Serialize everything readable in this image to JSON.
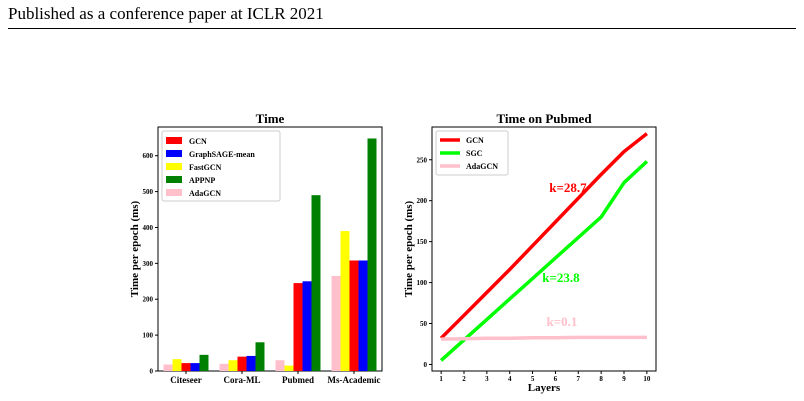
{
  "page": {
    "header": "Published as a conference paper at ICLR 2021"
  },
  "chart_data": [
    {
      "type": "bar",
      "title": "Time",
      "xlabel": "",
      "ylabel": "Time per epoch (ms)",
      "ylim": [
        0,
        680
      ],
      "yticks": [
        0,
        100,
        200,
        300,
        400,
        500,
        600
      ],
      "categories": [
        "Citeseer",
        "Cora-ML",
        "Pubmed",
        "Ms-Academic"
      ],
      "legend": "top-left",
      "grid": false,
      "series": [
        {
          "name": "AdaGCN",
          "color": "#ffc0cb",
          "values": [
            18,
            20,
            30,
            265
          ]
        },
        {
          "name": "FastGCN",
          "color": "#ffff00",
          "values": [
            33,
            30,
            15,
            390
          ]
        },
        {
          "name": "GCN",
          "color": "#ff0000",
          "values": [
            22,
            40,
            245,
            308
          ]
        },
        {
          "name": "GraphSAGE-mean",
          "color": "#0000ff",
          "values": [
            22,
            42,
            250,
            308
          ]
        },
        {
          "name": "APPNP",
          "color": "#008000",
          "values": [
            45,
            80,
            490,
            648
          ]
        }
      ],
      "legend_order": [
        "GCN",
        "GraphSAGE-mean",
        "FastGCN",
        "APPNP",
        "AdaGCN"
      ]
    },
    {
      "type": "line",
      "title": "Time on Pubmed",
      "xlabel": "Layers",
      "ylabel": "Time per epoch (ms)",
      "xlim": [
        0.6,
        10.4
      ],
      "ylim": [
        -8,
        290
      ],
      "xticks": [
        1,
        2,
        3,
        4,
        5,
        6,
        7,
        8,
        9,
        10
      ],
      "yticks": [
        0,
        50,
        100,
        150,
        200,
        250
      ],
      "legend": "top-left",
      "grid": false,
      "series": [
        {
          "name": "GCN",
          "color": "#ff0000",
          "x": [
            1,
            2,
            3,
            4,
            5,
            6,
            7,
            8,
            9,
            10
          ],
          "values": [
            32,
            60,
            88,
            116,
            145,
            174,
            203,
            232,
            260,
            282
          ]
        },
        {
          "name": "SGC",
          "color": "#00ff00",
          "x": [
            1,
            2,
            3,
            4,
            5,
            6,
            7,
            8,
            9,
            10
          ],
          "values": [
            5,
            30,
            55,
            80,
            105,
            130,
            155,
            180,
            222,
            248
          ]
        },
        {
          "name": "AdaGCN",
          "color": "#ffc0cb",
          "x": [
            1,
            2,
            3,
            4,
            5,
            6,
            7,
            8,
            9,
            10
          ],
          "values": [
            31,
            31.5,
            32,
            32,
            32.5,
            32.5,
            33,
            33,
            33,
            33
          ]
        }
      ],
      "annotations": [
        {
          "text": "k=28.7",
          "color": "#ff0000"
        },
        {
          "text": "k=23.8",
          "color": "#00ff00"
        },
        {
          "text": "k=0.1",
          "color": "#ffc0cb"
        }
      ]
    }
  ]
}
